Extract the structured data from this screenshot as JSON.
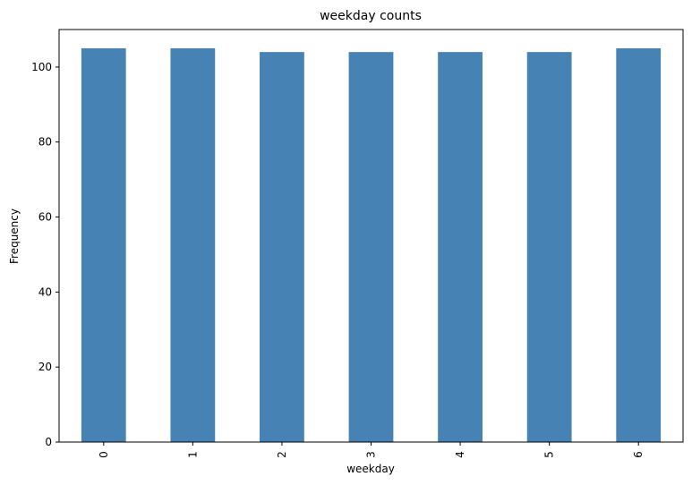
{
  "chart_data": {
    "type": "bar",
    "title": "weekday counts",
    "xlabel": "weekday",
    "ylabel": "Frequency",
    "categories": [
      "0",
      "1",
      "2",
      "3",
      "4",
      "5",
      "6"
    ],
    "values": [
      105,
      105,
      104,
      104,
      104,
      104,
      105
    ],
    "ylim": [
      0,
      110
    ],
    "yticks": [
      0,
      20,
      40,
      60,
      80,
      100
    ],
    "bar_color": "#4682b4",
    "grid": false,
    "legend": "none"
  }
}
